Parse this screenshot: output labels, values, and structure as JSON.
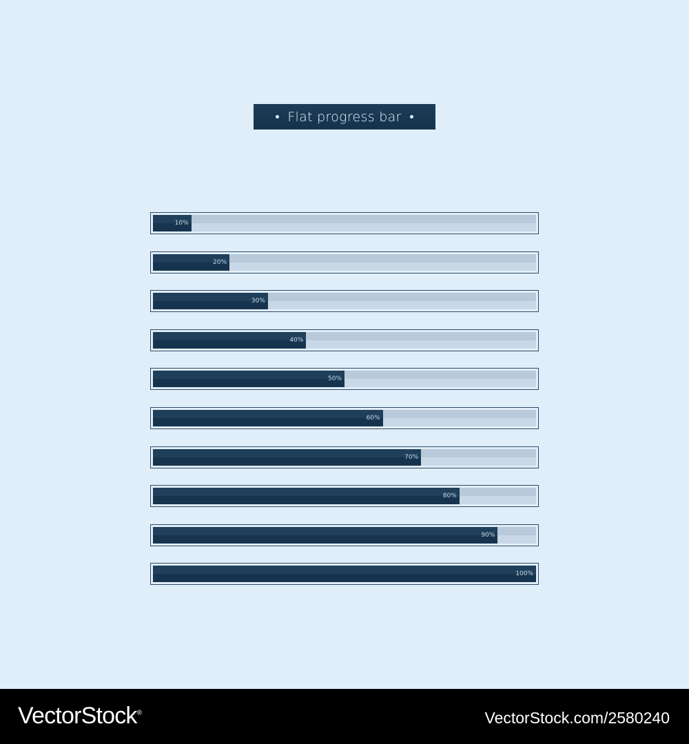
{
  "title": "Flat progress bar",
  "colors": {
    "background": "#e0eefa",
    "fill": "#1b3a54",
    "track": "#bfd0e0",
    "footer": "#000000"
  },
  "progress_bars": [
    {
      "label": "10%",
      "value": 0.1
    },
    {
      "label": "20%",
      "value": 0.2
    },
    {
      "label": "30%",
      "value": 0.3
    },
    {
      "label": "40%",
      "value": 0.4
    },
    {
      "label": "50%",
      "value": 0.5
    },
    {
      "label": "60%",
      "value": 0.6
    },
    {
      "label": "70%",
      "value": 0.7
    },
    {
      "label": "80%",
      "value": 0.8
    },
    {
      "label": "90%",
      "value": 0.9
    },
    {
      "label": "100%",
      "value": 1.0
    }
  ],
  "footer": {
    "brand": "VectorStock",
    "registered_mark": "®",
    "image_id": "VectorStock.com/2580240"
  }
}
